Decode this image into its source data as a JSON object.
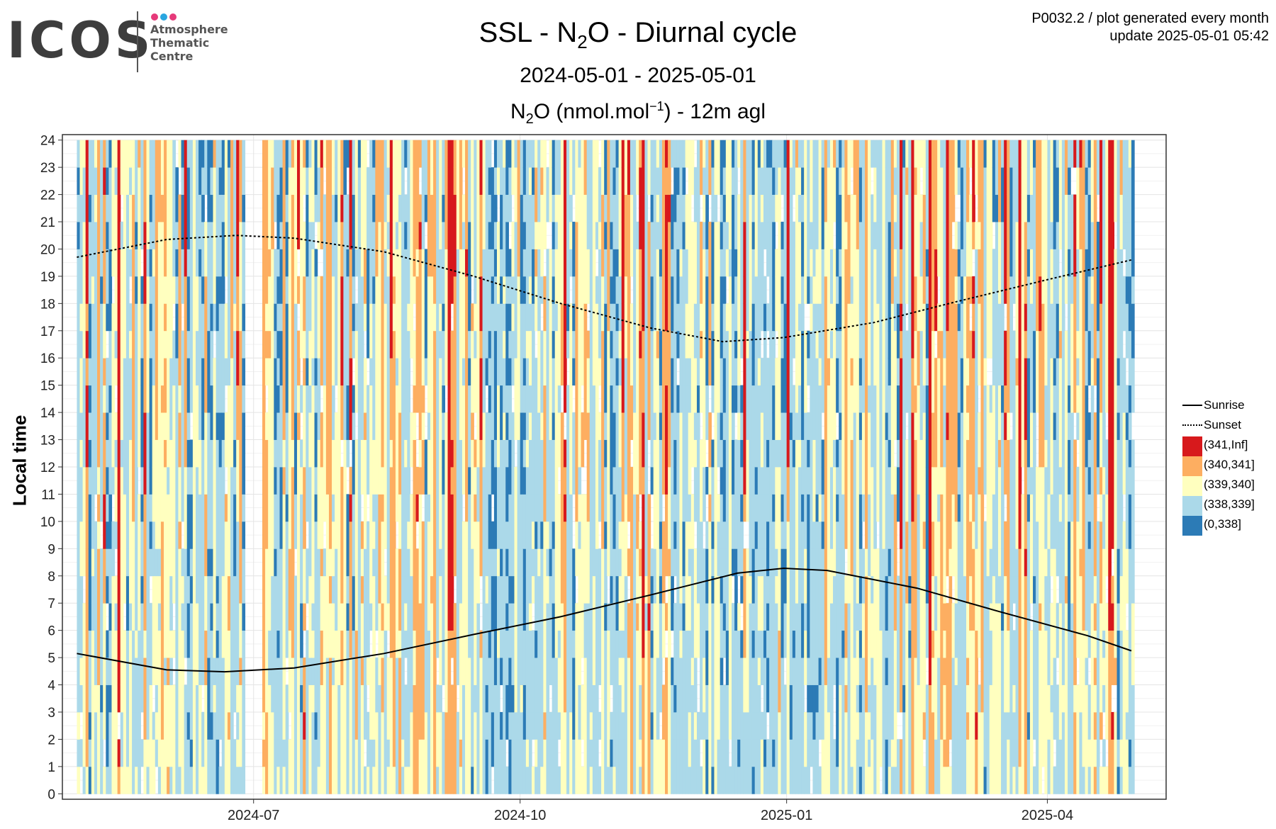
{
  "logo": {
    "word": "ICOS",
    "sub_lines": [
      "Atmosphere",
      "Thematic",
      "Centre"
    ],
    "dot_colors": [
      "#e63a7a",
      "#2aa6e0",
      "#e63a7a"
    ]
  },
  "header": {
    "title_prefix": "SSL - N",
    "title_sub": "2",
    "title_suffix": "O - Diurnal cycle",
    "date_range": "2024-05-01 - 2025-05-01",
    "var_prefix": "N",
    "var_sub": "2",
    "var_mid": "O (nmol.mol",
    "var_sup": "−1",
    "var_suffix": ") - 12m agl"
  },
  "meta": {
    "line1": "P0032.2 / plot generated every month",
    "line2": "update  2025-05-01 05:42"
  },
  "chart_data": {
    "type": "heatmap",
    "ylabel": "Local time",
    "x_axis": {
      "ticks": [
        "2024-07",
        "2024-10",
        "2025-01",
        "2025-04"
      ],
      "range": [
        "2024-04-26",
        "2025-05-12"
      ]
    },
    "y_axis": {
      "ticks": [
        0,
        1,
        2,
        3,
        4,
        5,
        6,
        7,
        8,
        9,
        10,
        11,
        12,
        13,
        14,
        15,
        16,
        17,
        18,
        19,
        20,
        21,
        22,
        23,
        24
      ],
      "range": [
        -0.2,
        24.2
      ]
    },
    "grid": true,
    "data_start": "2024-05-01",
    "data_end": "2025-04-30",
    "legend_position": "right",
    "bins": [
      {
        "label": "(341,Inf]",
        "color": "#d7191c"
      },
      {
        "label": "(340,341]",
        "color": "#fdae61"
      },
      {
        "label": "(339,340]",
        "color": "#ffffbf"
      },
      {
        "label": "(338,339]",
        "color": "#abd9e9"
      },
      {
        "label": "(0,338]",
        "color": "#2c7bb6"
      }
    ],
    "lines": [
      {
        "name": "Sunrise",
        "style": "solid",
        "points": [
          [
            "2024-05-01",
            5.15
          ],
          [
            "2024-06-01",
            4.55
          ],
          [
            "2024-06-21",
            4.48
          ],
          [
            "2024-07-15",
            4.62
          ],
          [
            "2024-08-15",
            5.15
          ],
          [
            "2024-09-15",
            5.85
          ],
          [
            "2024-10-15",
            6.5
          ],
          [
            "2024-11-15",
            7.3
          ],
          [
            "2024-12-15",
            8.1
          ],
          [
            "2024-12-31",
            8.28
          ],
          [
            "2025-01-15",
            8.2
          ],
          [
            "2025-02-15",
            7.55
          ],
          [
            "2025-03-15",
            6.7
          ],
          [
            "2025-04-15",
            5.8
          ],
          [
            "2025-04-30",
            5.25
          ]
        ]
      },
      {
        "name": "Sunset",
        "style": "dotted",
        "points": [
          [
            "2024-05-01",
            19.7
          ],
          [
            "2024-06-01",
            20.35
          ],
          [
            "2024-06-25",
            20.5
          ],
          [
            "2024-07-15",
            20.4
          ],
          [
            "2024-08-15",
            19.9
          ],
          [
            "2024-09-15",
            19.0
          ],
          [
            "2024-10-15",
            18.0
          ],
          [
            "2024-11-15",
            17.1
          ],
          [
            "2024-12-10",
            16.6
          ],
          [
            "2024-12-31",
            16.75
          ],
          [
            "2025-01-31",
            17.3
          ],
          [
            "2025-02-28",
            18.05
          ],
          [
            "2025-03-31",
            18.85
          ],
          [
            "2025-04-30",
            19.6
          ]
        ]
      }
    ]
  }
}
